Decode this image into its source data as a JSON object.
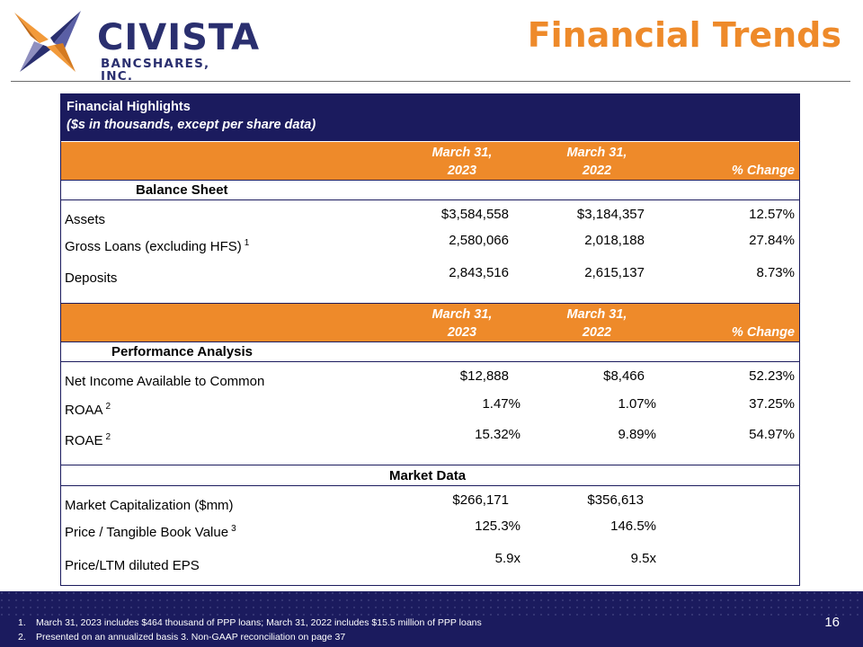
{
  "header": {
    "brand_name": "CIVISTA",
    "brand_sub": "BANCSHARES, INC.",
    "title": "Financial Trends"
  },
  "table": {
    "title": "Financial Highlights",
    "subtitle": "($s in thousands, except per share data)",
    "column_headers": {
      "c1_line1": "March 31,",
      "c1_line2": "2023",
      "c2_line1": "March 31,",
      "c2_line2": "2022",
      "c3": "% Change"
    },
    "sections": [
      {
        "name": "Balance Sheet",
        "rows": [
          {
            "label": "Assets",
            "note": "",
            "v2023": "$3,584,558",
            "v2022": "$3,184,357",
            "change": "12.57%"
          },
          {
            "label": "Gross Loans (excluding HFS)",
            "note": "1",
            "v2023": "2,580,066",
            "v2022": "2,018,188",
            "change": "27.84%"
          },
          {
            "label": "Deposits",
            "note": "",
            "v2023": "2,843,516",
            "v2022": "2,615,137",
            "change": "8.73%"
          }
        ]
      },
      {
        "name": "Performance Analysis",
        "rows": [
          {
            "label": "Net Income Available to Common",
            "note": "",
            "v2023": "$12,888",
            "v2022": "$8,466",
            "change": "52.23%"
          },
          {
            "label": "ROAA",
            "note": "2",
            "v2023": "1.47%",
            "v2022": "1.07%",
            "change": "37.25%"
          },
          {
            "label": "ROAE",
            "note": "2",
            "v2023": "15.32%",
            "v2022": "9.89%",
            "change": "54.97%"
          }
        ]
      },
      {
        "name": "Market Data",
        "rows": [
          {
            "label": "Market Capitalization ($mm)",
            "note": "",
            "v2023": "$266,171",
            "v2022": "$356,613",
            "change": ""
          },
          {
            "label": "Price / Tangible Book Value",
            "note": "3",
            "v2023": "125.3%",
            "v2022": "146.5%",
            "change": ""
          },
          {
            "label": "Price/LTM diluted EPS",
            "note": "",
            "v2023": "5.9x",
            "v2022": "9.5x",
            "change": ""
          }
        ]
      }
    ]
  },
  "footer": {
    "note1_num": "1.",
    "note1": "March 31, 2023 includes $464 thousand of PPP loans; March 31, 2022 includes $15.5 million of PPP loans",
    "note2_num": "2.",
    "note2": "Presented on an annualized basis  3. Non-GAAP reconciliation on page 37",
    "page_number": "16"
  },
  "colors": {
    "navy": "#1b1b5e",
    "orange": "#ee8a2a",
    "logo_navy": "#2a2f6f"
  }
}
